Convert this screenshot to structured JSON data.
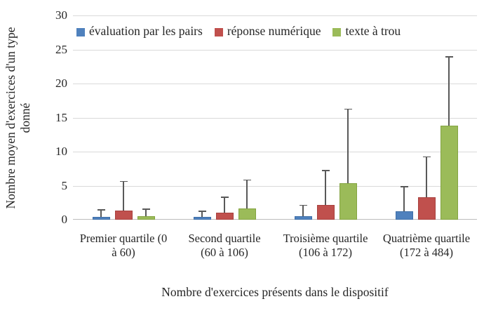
{
  "chart_data": {
    "type": "bar",
    "title": "",
    "xlabel": "Nombre d'exercices présents dans le dispositif",
    "ylabel": "Nombre moyen d'exercices d'un type donné",
    "ylim": [
      0,
      30
    ],
    "yticks": [
      0,
      5,
      10,
      15,
      20,
      25,
      30
    ],
    "grid": true,
    "legend_position": "top-inside-horizontal",
    "error_bars": "upper-only",
    "categories": [
      {
        "label": "Premier quartile (0 à 60)",
        "line1": "Premier quartile (0",
        "line2": "à 60)"
      },
      {
        "label": "Second quartile (60 à 106)",
        "line1": "Second quartile",
        "line2": "(60 à 106)"
      },
      {
        "label": "Troisième quartile (106 à 172)",
        "line1": "Troisième quartile",
        "line2": "(106 à 172)"
      },
      {
        "label": "Quatrième quartile (172 à 484)",
        "line1": "Quatrième quartile",
        "line2": "(172 à 484)"
      }
    ],
    "series": [
      {
        "name": "évaluation par les pairs",
        "color": "#4F81BD",
        "border_color": "#3F6FA8",
        "values": [
          0.4,
          0.4,
          0.5,
          1.2
        ],
        "error_whisker_top": [
          1.5,
          1.3,
          2.2,
          4.9
        ]
      },
      {
        "name": "réponse numérique",
        "color": "#C0504D",
        "border_color": "#A8413E",
        "values": [
          1.3,
          1.0,
          2.2,
          3.3
        ],
        "error_whisker_top": [
          5.7,
          3.4,
          7.3,
          9.3
        ]
      },
      {
        "name": "texte à trou",
        "color": "#9BBB59",
        "border_color": "#84A442",
        "values": [
          0.5,
          1.7,
          5.4,
          13.8
        ],
        "error_whisker_top": [
          1.6,
          5.9,
          16.3,
          24.0
        ]
      }
    ]
  },
  "colors": {
    "gridline": "#d9d9d9",
    "baseline": "#bdbdbd",
    "error_bar": "#595959",
    "text": "#262626",
    "background": "#ffffff"
  }
}
